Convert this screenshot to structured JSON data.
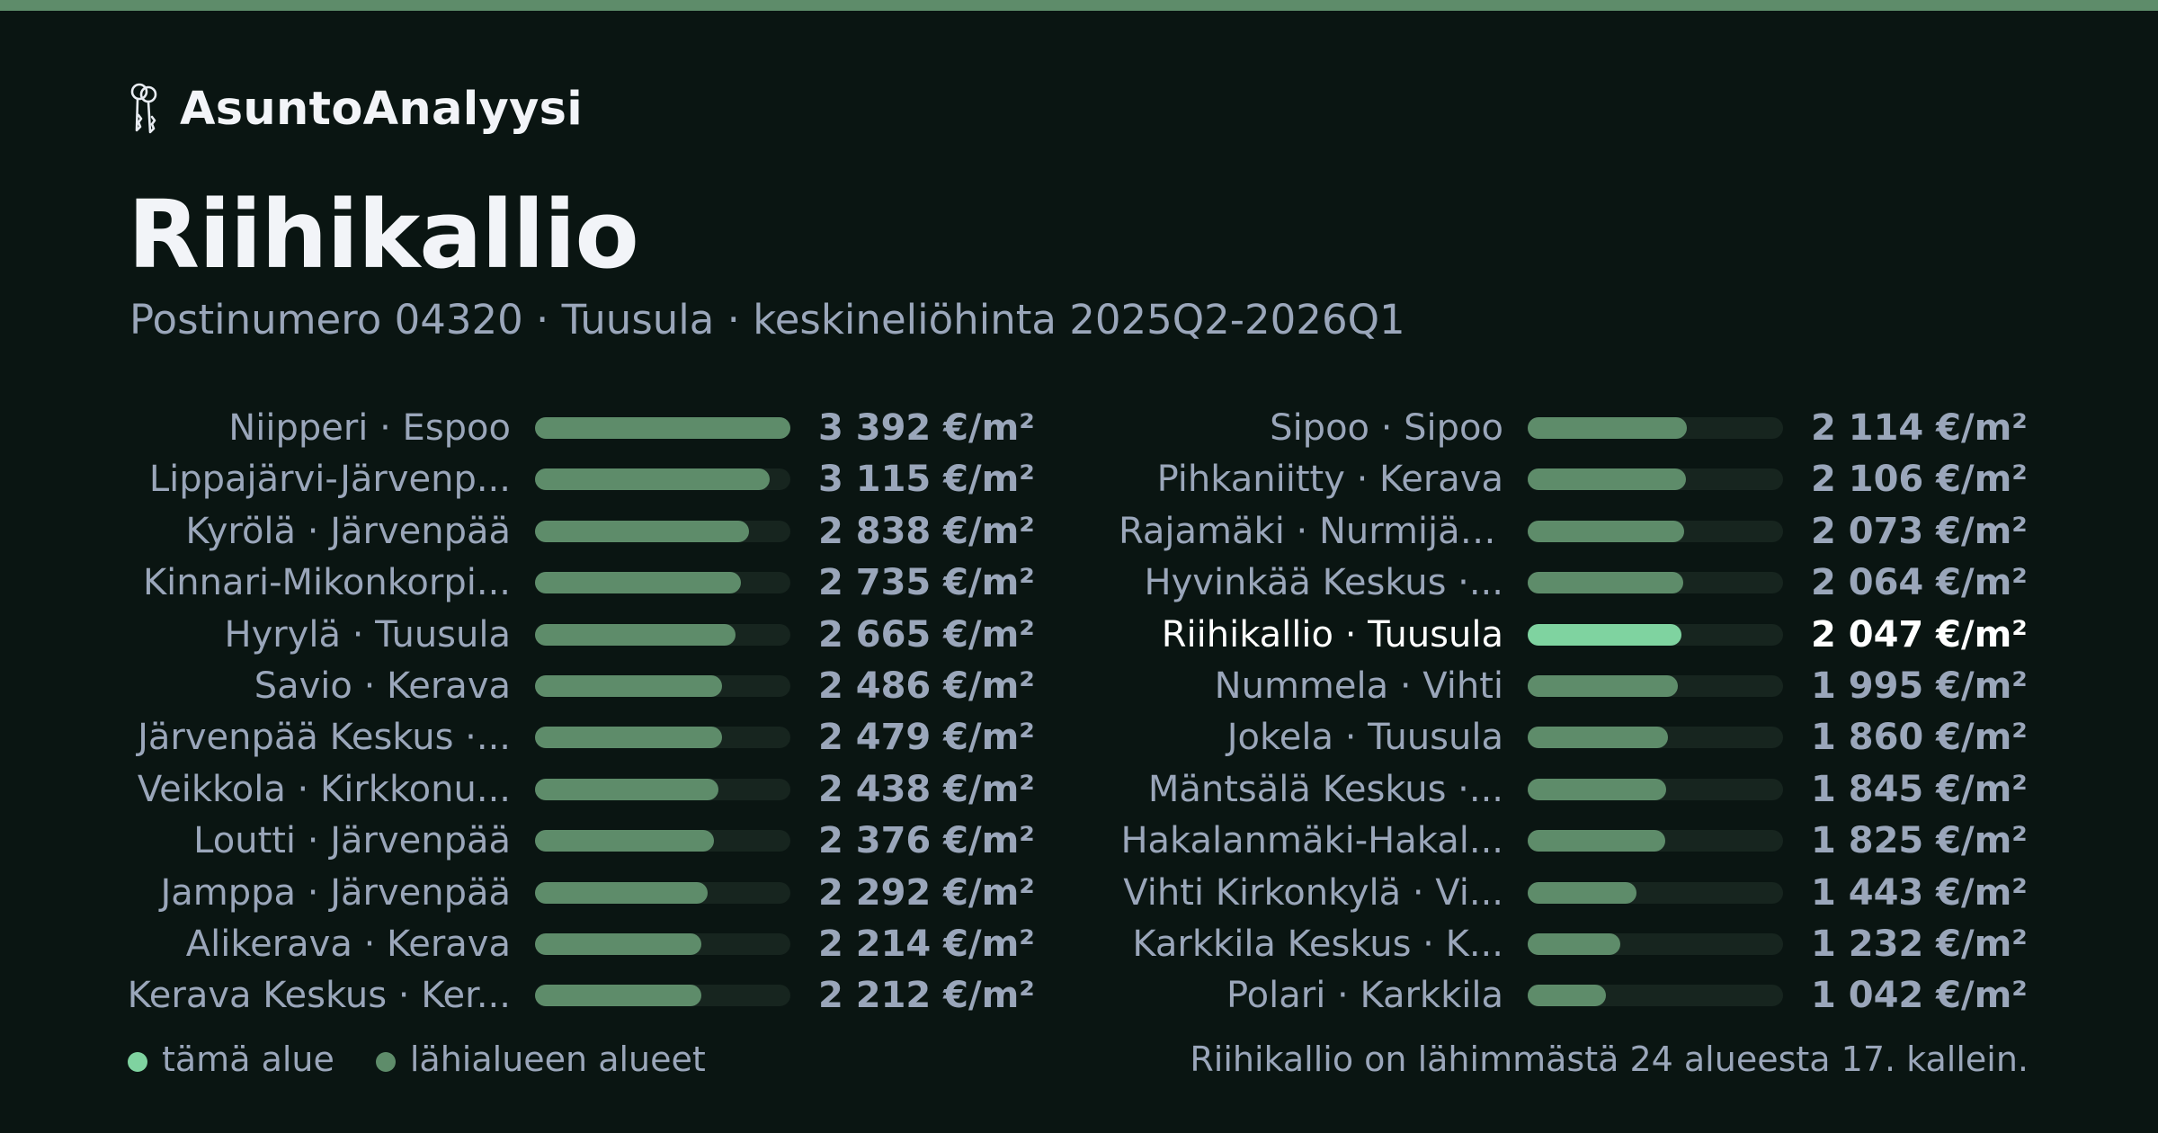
{
  "header": {
    "brand_icon": "keys-icon",
    "brand_name": "AsuntoAnalyysi",
    "title": "Riihikallio",
    "subtitle": "Postinumero 04320 · Tuusula · keskineliöhinta 2025Q2-2026Q1"
  },
  "colors": {
    "accent_bar": "#5e8c6a",
    "highlight_bar": "#7fd3a0",
    "track": "#17251f",
    "background": "#0a1512"
  },
  "chart_data": {
    "type": "bar",
    "orientation": "horizontal",
    "unit": "€/m²",
    "xlim": [
      0,
      3392
    ],
    "highlight": "Riihikallio · Tuusula",
    "categories": [
      "Niipperi · Espoo",
      "Lippajärvi-Järvenp...",
      "Kyrölä · Järvenpää",
      "Kinnari-Mikonkorpi...",
      "Hyrylä · Tuusula",
      "Savio · Kerava",
      "Järvenpää Keskus ·...",
      "Veikkola · Kirkkonu...",
      "Loutti · Järvenpää",
      "Jamppa · Järvenpää",
      "Alikerava · Kerava",
      "Kerava Keskus · Ker...",
      "Sipoo · Sipoo",
      "Pihkaniitty · Kerava",
      "Rajamäki · Nurmijärvi",
      "Hyvinkää Keskus ·...",
      "Riihikallio · Tuusula",
      "Nummela · Vihti",
      "Jokela · Tuusula",
      "Mäntsälä Keskus ·...",
      "Hakalanmäki-Hakal...",
      "Vihti Kirkonkylä · Vi...",
      "Karkkila Keskus · K...",
      "Polari · Karkkila"
    ],
    "values": [
      3392,
      3115,
      2838,
      2735,
      2665,
      2486,
      2479,
      2438,
      2376,
      2292,
      2214,
      2212,
      2114,
      2106,
      2073,
      2064,
      2047,
      1995,
      1860,
      1845,
      1825,
      1443,
      1232,
      1042
    ],
    "value_labels": [
      "3 392 €/m²",
      "3 115 €/m²",
      "2 838 €/m²",
      "2 735 €/m²",
      "2 665 €/m²",
      "2 486 €/m²",
      "2 479 €/m²",
      "2 438 €/m²",
      "2 376 €/m²",
      "2 292 €/m²",
      "2 214 €/m²",
      "2 212 €/m²",
      "2 114 €/m²",
      "2 106 €/m²",
      "2 073 €/m²",
      "2 064 €/m²",
      "2 047 €/m²",
      "1 995 €/m²",
      "1 860 €/m²",
      "1 845 €/m²",
      "1 825 €/m²",
      "1 443 €/m²",
      "1 232 €/m²",
      "1 042 €/m²"
    ]
  },
  "legend": {
    "this_area": "tämä alue",
    "nearby_areas": "lähialueen alueet"
  },
  "footer": {
    "rank_text": "Riihikallio on lähimmästä 24 alueesta 17. kallein."
  }
}
